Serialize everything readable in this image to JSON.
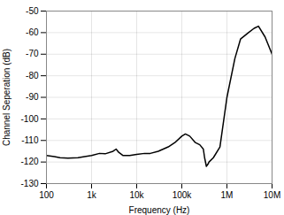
{
  "chart_data": {
    "type": "line",
    "xlabel": "Frequency (Hz)",
    "ylabel": "Channel Seperation (dB)",
    "log": "x",
    "grid": true,
    "color": "#000000",
    "xlim": [
      100,
      10000000
    ],
    "ylim": [
      -130,
      -50
    ],
    "xticks": [
      100,
      {
        "value": 1000,
        "label": "1k"
      },
      {
        "value": 10000,
        "label": "10k"
      },
      {
        "value": 100000,
        "label": "100k"
      },
      {
        "value": 1000000,
        "label": "1M"
      },
      {
        "value": 10000000,
        "label": "10M"
      }
    ],
    "yticks": [
      -130,
      -120,
      -110,
      -100,
      -90,
      -80,
      -70,
      -60,
      -50
    ],
    "x": [
      100,
      150,
      200,
      300,
      500,
      700,
      1000,
      1500,
      2000,
      3000,
      3500,
      4000,
      5000,
      7000,
      10000,
      15000,
      20000,
      30000,
      50000,
      70000,
      100000,
      120000,
      150000,
      200000,
      250000,
      300000,
      320000,
      350000,
      380000,
      400000,
      500000,
      700000,
      1000000,
      1500000,
      2000000,
      3000000,
      4000000,
      5000000,
      7000000,
      10000000
    ],
    "values": [
      -117,
      -117.5,
      -118,
      -118.2,
      -118,
      -117.5,
      -117,
      -116,
      -116.2,
      -115,
      -114,
      -115.5,
      -117,
      -117,
      -116.5,
      -116,
      -116,
      -115,
      -113,
      -111,
      -108,
      -107,
      -108,
      -111,
      -112,
      -114,
      -118,
      -122,
      -121,
      -120,
      -118,
      -113,
      -90,
      -72,
      -63,
      -60,
      -58,
      -57,
      -62,
      -70
    ]
  }
}
